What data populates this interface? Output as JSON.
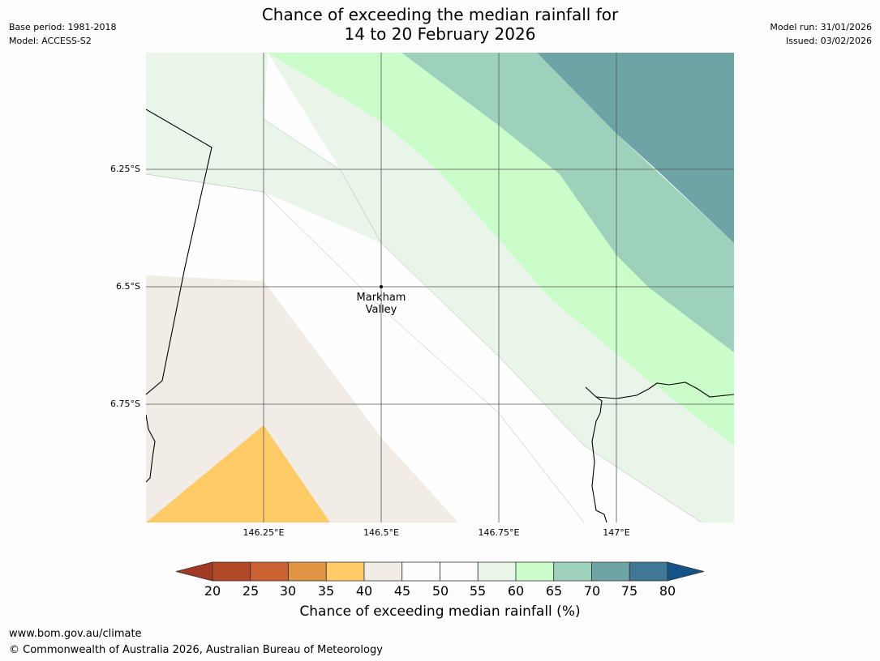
{
  "header": {
    "title_line1": "Chance of exceeding the median rainfall for",
    "title_line2": "14 to 20 February 2026",
    "base_period": "Base period: 1981-2018",
    "model": "Model: ACCESS-S2",
    "model_run": "Model run: 31/01/2026",
    "issued": "Issued: 03/02/2026"
  },
  "map": {
    "latitude_labels": [
      "6.25°S",
      "6.5°S",
      "6.75°S"
    ],
    "longitude_labels": [
      "146.25°E",
      "146.5°E",
      "146.75°E",
      "147°E"
    ],
    "place_label_line1": "Markham",
    "place_label_line2": "Valley"
  },
  "colorbar": {
    "ticks": [
      "20",
      "25",
      "30",
      "35",
      "40",
      "45",
      "50",
      "55",
      "60",
      "65",
      "70",
      "75",
      "80"
    ],
    "title": "Chance of exceeding median rainfall (%)",
    "colors": {
      "below_20": "#a23a23",
      "20_25": "#b14826",
      "25_30": "#cc6233",
      "30_35": "#e19443",
      "35_40": "#fecb66",
      "40_45": "#f1ece5",
      "45_50": "#fefefe",
      "50_55": "#fefefe",
      "55_60": "#eaf5ea",
      "60_65": "#cbfdcb",
      "65_70": "#9dd1bb",
      "70_75": "#6ea4a6",
      "75_80": "#3f7797",
      "above_80": "#145388"
    }
  },
  "footer": {
    "url": "www.bom.gov.au/climate",
    "copyright": "© Commonwealth of Australia 2026, Australian Bureau of Meteorology"
  }
}
